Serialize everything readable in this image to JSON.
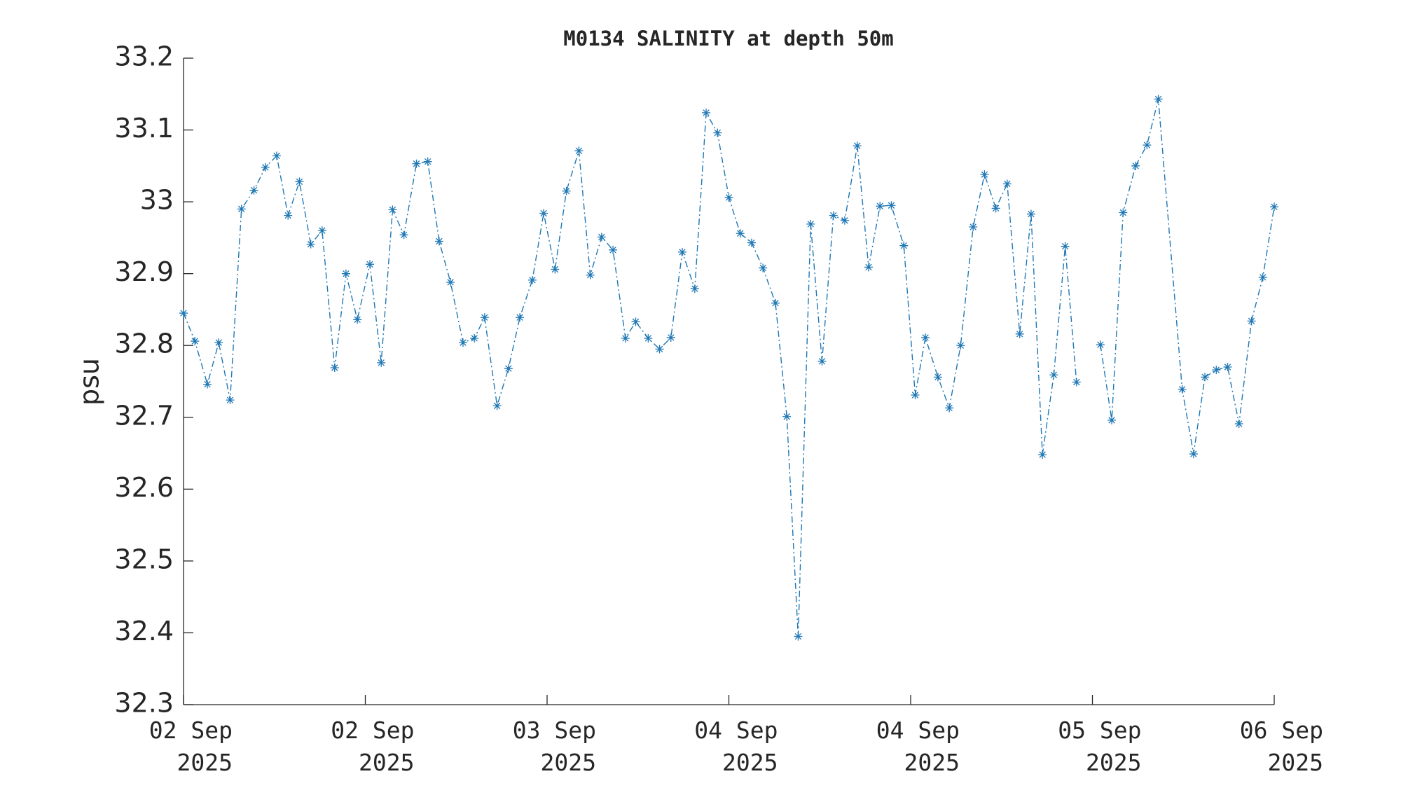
{
  "chart_data": {
    "type": "line",
    "title": "M0134 SALINITY at depth 50m",
    "ylabel": "psu",
    "xlim": [
      0,
      96
    ],
    "ylim": [
      32.3,
      33.2
    ],
    "yticks": [
      32.3,
      32.4,
      32.5,
      32.6,
      32.7,
      32.8,
      32.9,
      33,
      33.1,
      33.2
    ],
    "xticks": [
      {
        "value": 0,
        "label": "02 Sep\n2025"
      },
      {
        "value": 16,
        "label": "02 Sep\n2025"
      },
      {
        "value": 32,
        "label": "03 Sep\n2025"
      },
      {
        "value": 48,
        "label": "04 Sep\n2025"
      },
      {
        "value": 64,
        "label": "04 Sep\n2025"
      },
      {
        "value": 80,
        "label": "05 Sep\n2025"
      },
      {
        "value": 96,
        "label": "06 Sep\n2025"
      }
    ],
    "grid": false,
    "x": [
      0,
      1.0,
      2.1,
      3.1,
      4.1,
      5.1,
      6.2,
      7.2,
      8.2,
      9.2,
      10.2,
      11.2,
      12.2,
      13.3,
      14.3,
      15.3,
      16.4,
      17.4,
      18.4,
      19.4,
      20.5,
      21.5,
      22.5,
      23.5,
      24.6,
      25.6,
      26.5,
      27.6,
      28.6,
      29.6,
      30.7,
      31.7,
      32.7,
      33.7,
      34.8,
      35.8,
      36.8,
      37.8,
      38.9,
      39.8,
      40.9,
      41.9,
      42.9,
      43.9,
      45.0,
      46.0,
      47.0,
      48.0,
      49.0,
      50.0,
      51.0,
      52.1,
      53.1,
      54.1,
      55.2,
      56.2,
      57.2,
      58.2,
      59.3,
      60.3,
      61.3,
      62.3,
      63.4,
      64.4,
      65.3,
      66.4,
      67.4,
      68.4,
      69.5,
      70.5,
      71.5,
      72.5,
      73.6,
      74.6,
      75.6,
      76.6,
      77.6,
      78.6,
      79.6,
      80.7,
      81.7,
      82.7,
      83.8,
      84.8,
      85.8,
      87.9,
      88.9,
      89.9,
      90.9,
      91.9,
      92.9,
      94.0,
      95.0,
      96.0
    ],
    "series": [
      {
        "name": "SALINITY",
        "color": "#1f77b4",
        "marker": "asterisk",
        "linestyle": "dashdot",
        "values": [
          32.845,
          32.806,
          32.746,
          32.804,
          32.724,
          32.99,
          33.016,
          33.048,
          33.064,
          32.981,
          33.028,
          32.941,
          32.96,
          32.769,
          32.9,
          32.836,
          32.913,
          32.776,
          32.989,
          32.954,
          33.053,
          33.056,
          32.945,
          32.888,
          32.804,
          32.81,
          32.839,
          32.716,
          32.768,
          32.839,
          32.891,
          32.984,
          32.906,
          33.015,
          33.071,
          32.898,
          32.951,
          32.933,
          32.81,
          32.833,
          32.81,
          32.795,
          32.811,
          32.93,
          32.879,
          33.124,
          33.096,
          33.006,
          32.956,
          32.943,
          32.908,
          32.859,
          32.701,
          32.395,
          32.969,
          32.778,
          32.981,
          32.974,
          33.078,
          32.909,
          32.994,
          32.995,
          32.939,
          32.731,
          32.811,
          32.756,
          32.713,
          32.8,
          32.965,
          33.038,
          32.991,
          33.025,
          32.816,
          32.983,
          32.648,
          32.759,
          32.938,
          32.749,
          null,
          32.801,
          32.696,
          32.985,
          33.05,
          33.079,
          33.143,
          32.739,
          32.649,
          32.756,
          32.766,
          32.77,
          32.691,
          32.834,
          32.895,
          32.993
        ]
      }
    ]
  }
}
